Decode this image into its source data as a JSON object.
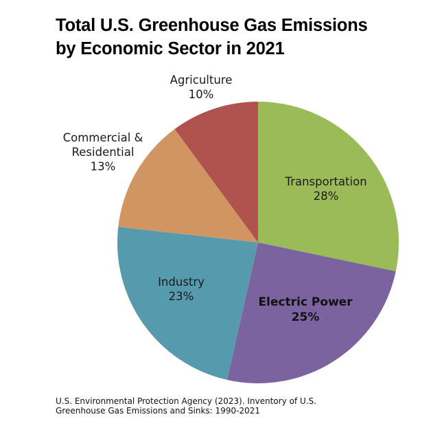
{
  "chart_data": {
    "type": "pie",
    "title": "Total U.S. Greenhouse Gas Emissions by Economic Sector in 2021",
    "title_lines": [
      "Total U.S. Greenhouse Gas Emissions",
      "by Economic Sector in 2021"
    ],
    "categories": [
      "Transportation",
      "Electric Power",
      "Industry",
      "Commercial & Residential",
      "Agriculture"
    ],
    "values": [
      28,
      25,
      23,
      13,
      10
    ],
    "unit": "%",
    "colors": [
      "#9bbb59",
      "#7b63a0",
      "#5799ad",
      "#d19564",
      "#b0524e"
    ],
    "start_angle_deg": 0,
    "direction": "clockwise-from-12-oclock",
    "legend": "none (direct labels)",
    "labels": [
      {
        "name": "Transportation",
        "value": "28%",
        "bold": false
      },
      {
        "name": "Electric Power",
        "value": "25%",
        "bold": true
      },
      {
        "name": "Industry",
        "value": "23%",
        "bold": false
      },
      {
        "name_lines": [
          "Commercial &",
          "Residential"
        ],
        "value": "13%",
        "bold": false
      },
      {
        "name": "Agriculture",
        "value": "10%",
        "bold": false
      }
    ]
  },
  "source": {
    "line1": "U.S. Environmental Protection Agency (2023). Inventory of U.S.",
    "line2": "Greenhouse Gas Emissions and Sinks: 1990-2021"
  }
}
